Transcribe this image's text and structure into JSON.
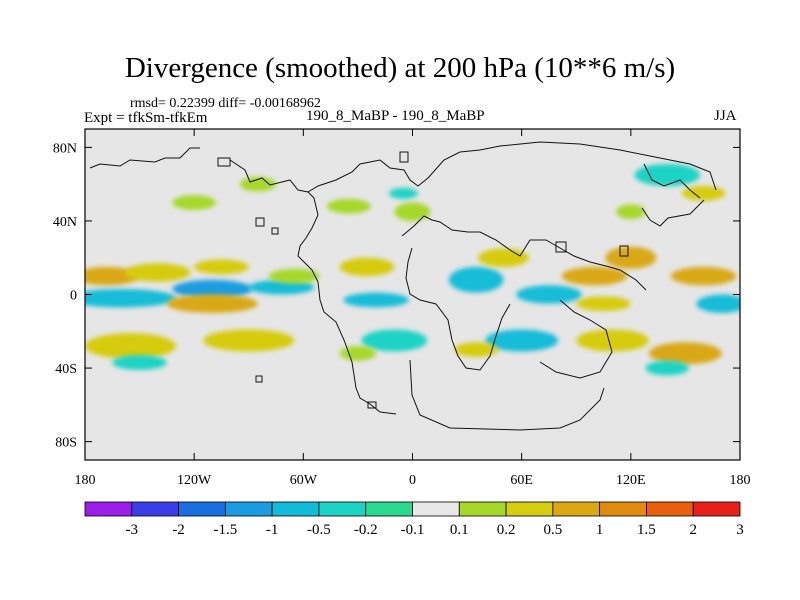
{
  "chart_data": {
    "type": "heatmap",
    "title": "Divergence (smoothed) at 200 hPa (10**6 m/s)",
    "stats": {
      "rmsd_label": "rmsd= 0.22399",
      "diff_label": "diff= -0.00168962"
    },
    "left_label": "Expt = tfkSm-tfkEm",
    "center_label": "190_8_MaBP - 190_8_MaBP",
    "right_label": "JJA",
    "xlim": [
      -180,
      180
    ],
    "ylim": [
      -90,
      90
    ],
    "x_ticks": [
      {
        "value": -180,
        "label": "180"
      },
      {
        "value": -120,
        "label": "120W"
      },
      {
        "value": -60,
        "label": "60W"
      },
      {
        "value": 0,
        "label": "0"
      },
      {
        "value": 60,
        "label": "60E"
      },
      {
        "value": 120,
        "label": "120E"
      },
      {
        "value": 180,
        "label": "180"
      }
    ],
    "y_ticks": [
      {
        "value": 80,
        "label": "80N"
      },
      {
        "value": 40,
        "label": "40N"
      },
      {
        "value": 0,
        "label": "0"
      },
      {
        "value": -40,
        "label": "40S"
      },
      {
        "value": -80,
        "label": "80S"
      }
    ],
    "colorbar": {
      "levels": [
        "-3",
        "-2",
        "-1.5",
        "-1",
        "-0.5",
        "-0.2",
        "-0.1",
        "0.1",
        "0.2",
        "0.5",
        "1",
        "1.5",
        "2",
        "3"
      ],
      "colors": [
        "#9a1ee8",
        "#3b3ee6",
        "#1a6fe0",
        "#1a9de0",
        "#12bcd8",
        "#1cd3c5",
        "#2ad88e",
        "#e8e8e8",
        "#a6d82a",
        "#d6cc10",
        "#d9a814",
        "#e08a10",
        "#e8600e",
        "#e8201a"
      ]
    },
    "regions": [
      {
        "lon": -168,
        "lat": 10,
        "w": 18,
        "h": 5,
        "value": 0.8
      },
      {
        "lon": -140,
        "lat": 12,
        "w": 18,
        "h": 5,
        "value": 0.4
      },
      {
        "lon": -160,
        "lat": -2,
        "w": 30,
        "h": 5,
        "value": -0.9
      },
      {
        "lon": -110,
        "lat": 3,
        "w": 22,
        "h": 5,
        "value": -1.1
      },
      {
        "lon": -72,
        "lat": 4,
        "w": 18,
        "h": 4,
        "value": -0.6
      },
      {
        "lon": -110,
        "lat": -5,
        "w": 25,
        "h": 5,
        "value": 0.9
      },
      {
        "lon": -155,
        "lat": -28,
        "w": 25,
        "h": 7,
        "value": 0.5
      },
      {
        "lon": -90,
        "lat": -25,
        "w": 25,
        "h": 6,
        "value": 0.4
      },
      {
        "lon": -150,
        "lat": -37,
        "w": 15,
        "h": 4,
        "value": -0.3
      },
      {
        "lon": -105,
        "lat": 15,
        "w": 15,
        "h": 4,
        "value": 0.3
      },
      {
        "lon": -65,
        "lat": 10,
        "w": 14,
        "h": 4,
        "value": 0.2
      },
      {
        "lon": -25,
        "lat": 15,
        "w": 15,
        "h": 5,
        "value": 0.4
      },
      {
        "lon": -20,
        "lat": -3,
        "w": 18,
        "h": 4,
        "value": -0.5
      },
      {
        "lon": -10,
        "lat": -25,
        "w": 18,
        "h": 6,
        "value": -0.4
      },
      {
        "lon": -30,
        "lat": -32,
        "w": 10,
        "h": 4,
        "value": 0.2
      },
      {
        "lon": 35,
        "lat": 8,
        "w": 15,
        "h": 7,
        "value": -0.8
      },
      {
        "lon": 50,
        "lat": 20,
        "w": 14,
        "h": 5,
        "value": 0.4
      },
      {
        "lon": 75,
        "lat": 0,
        "w": 18,
        "h": 5,
        "value": -0.6
      },
      {
        "lon": 100,
        "lat": 10,
        "w": 18,
        "h": 5,
        "value": 0.6
      },
      {
        "lon": 120,
        "lat": 20,
        "w": 14,
        "h": 6,
        "value": 0.9
      },
      {
        "lon": 105,
        "lat": -5,
        "w": 15,
        "h": 4,
        "value": 0.5
      },
      {
        "lon": 160,
        "lat": 10,
        "w": 18,
        "h": 5,
        "value": 0.7
      },
      {
        "lon": 170,
        "lat": -5,
        "w": 14,
        "h": 5,
        "value": -0.5
      },
      {
        "lon": 60,
        "lat": -25,
        "w": 20,
        "h": 6,
        "value": -0.6
      },
      {
        "lon": 35,
        "lat": -30,
        "w": 12,
        "h": 4,
        "value": 0.3
      },
      {
        "lon": 110,
        "lat": -25,
        "w": 20,
        "h": 6,
        "value": 0.5
      },
      {
        "lon": 150,
        "lat": -32,
        "w": 20,
        "h": 6,
        "value": 0.6
      },
      {
        "lon": 140,
        "lat": -40,
        "w": 12,
        "h": 4,
        "value": -0.3
      },
      {
        "lon": 140,
        "lat": 65,
        "w": 18,
        "h": 6,
        "value": -0.3
      },
      {
        "lon": 160,
        "lat": 55,
        "w": 12,
        "h": 4,
        "value": 0.3
      },
      {
        "lon": 120,
        "lat": 45,
        "w": 8,
        "h": 4,
        "value": 0.2
      },
      {
        "lon": -120,
        "lat": 50,
        "w": 12,
        "h": 4,
        "value": 0.2
      },
      {
        "lon": -85,
        "lat": 60,
        "w": 10,
        "h": 4,
        "value": 0.2
      },
      {
        "lon": -35,
        "lat": 48,
        "w": 12,
        "h": 4,
        "value": 0.2
      },
      {
        "lon": 0,
        "lat": 45,
        "w": 10,
        "h": 5,
        "value": 0.2
      },
      {
        "lon": -5,
        "lat": 55,
        "w": 8,
        "h": 3,
        "value": -0.2
      }
    ]
  }
}
